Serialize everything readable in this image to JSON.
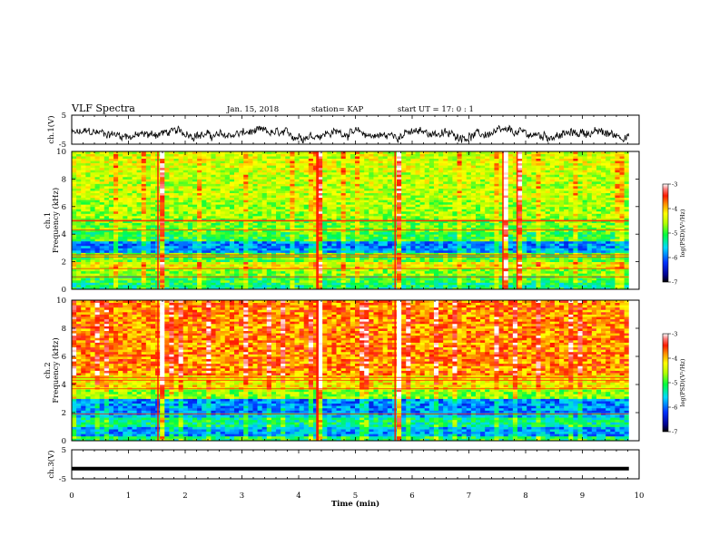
{
  "header": {
    "title": "VLF Spectra",
    "date": "Jan. 15, 2018",
    "station": "station= KAP",
    "start_ut": "start  UT =   17: 0  : 1"
  },
  "chart_data": [
    {
      "type": "line",
      "panel": "ch1-waveform",
      "ylabel": "ch.1(V)",
      "ylim": [
        -5,
        5
      ],
      "yticks": [
        "5",
        "-5"
      ],
      "xlim": [
        0,
        10
      ],
      "data_x_end": 9.82,
      "series_style": "noisy trace oscillating roughly between -4 and +1 V",
      "color": "#000000"
    },
    {
      "type": "heatmap",
      "panel": "ch1-spectrogram",
      "ylabel": "Frequency (kHz)",
      "ylabel_prefix": "ch.1",
      "ylim": [
        0,
        10
      ],
      "yticks": [
        "0",
        "2",
        "4",
        "6",
        "8",
        "10"
      ],
      "xlim": [
        0,
        10
      ],
      "data_x_end": 9.82,
      "colorbar": {
        "label": "log(PSD)(V²/Hz)",
        "range": [
          -7,
          -3
        ],
        "ticks": [
          "-3",
          "-4",
          "-5",
          "-6",
          "-7"
        ]
      },
      "bands": [
        {
          "from": 0.0,
          "to": 0.5,
          "level": -5.2
        },
        {
          "from": 0.5,
          "to": 1.0,
          "level": -5.0
        },
        {
          "from": 1.0,
          "to": 1.5,
          "level": -4.7
        },
        {
          "from": 1.5,
          "to": 2.0,
          "level": -4.3
        },
        {
          "from": 2.0,
          "to": 2.6,
          "level": -4.9
        },
        {
          "from": 2.6,
          "to": 3.0,
          "level": -5.8
        },
        {
          "from": 3.0,
          "to": 3.5,
          "level": -5.9
        },
        {
          "from": 3.5,
          "to": 4.2,
          "level": -5.0
        },
        {
          "from": 4.2,
          "to": 5.2,
          "level": -4.8
        },
        {
          "from": 5.2,
          "to": 6.5,
          "level": -4.6
        },
        {
          "from": 6.5,
          "to": 8.5,
          "level": -4.5
        },
        {
          "from": 8.5,
          "to": 10.0,
          "level": -4.4
        }
      ],
      "lines_khz": [
        5.0,
        4.95,
        4.3,
        2.5,
        2.35,
        1.5,
        0.9
      ],
      "bursts_min": [
        1.52,
        4.32,
        4.34,
        5.7,
        7.6,
        7.85
      ]
    },
    {
      "type": "heatmap",
      "panel": "ch2-spectrogram",
      "ylabel": "Frequency (kHz)",
      "ylabel_prefix": "ch.2",
      "ylim": [
        0,
        10
      ],
      "yticks": [
        "0",
        "2",
        "4",
        "6",
        "8",
        "10"
      ],
      "xlim": [
        0,
        10
      ],
      "data_x_end": 9.82,
      "colorbar": {
        "label": "log(PSD)(V²/Hz)",
        "range": [
          -7,
          -3
        ],
        "ticks": [
          "-3",
          "-4",
          "-5",
          "-6",
          "-7"
        ]
      },
      "bands": [
        {
          "from": 0.0,
          "to": 0.4,
          "level": -5.1
        },
        {
          "from": 0.4,
          "to": 1.0,
          "level": -5.8
        },
        {
          "from": 1.0,
          "to": 1.6,
          "level": -5.3
        },
        {
          "from": 1.6,
          "to": 2.0,
          "level": -5.7
        },
        {
          "from": 2.0,
          "to": 3.0,
          "level": -5.9
        },
        {
          "from": 3.0,
          "to": 3.6,
          "level": -4.7
        },
        {
          "from": 3.6,
          "to": 4.6,
          "level": -4.2
        },
        {
          "from": 4.6,
          "to": 10.0,
          "level": -3.8
        }
      ],
      "lines_khz": [
        4.5,
        4.3,
        3.7,
        1.9
      ],
      "bursts_min": [
        1.52,
        4.32,
        4.34,
        5.7
      ]
    },
    {
      "type": "line",
      "panel": "ch3-waveform",
      "ylabel": "ch.3(V)",
      "ylim": [
        -5,
        5
      ],
      "yticks": [
        "5",
        "-5"
      ],
      "xlim": [
        0,
        10
      ],
      "data_x_end": 9.82,
      "series_style": "flat thick line",
      "value": -1.5,
      "color": "#000000"
    }
  ],
  "x_axis": {
    "label": "Time (min)",
    "ticks": [
      "0",
      "1",
      "2",
      "3",
      "4",
      "5",
      "6",
      "7",
      "8",
      "9",
      "10"
    ]
  },
  "colors": {
    "frame": "#000000",
    "background": "#ffffff"
  }
}
